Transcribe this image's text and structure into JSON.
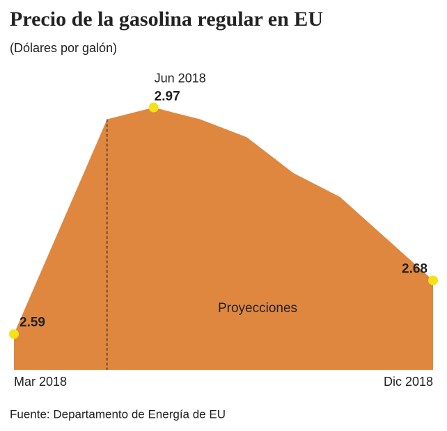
{
  "chart_data": {
    "type": "area",
    "title": "Precio de la gasolina regular en EU",
    "subtitle": "(Dólares por galón)",
    "source": "Fuente: Departamento de Energía de EU",
    "annotation": "Proyecciones",
    "projection_start_index": 2,
    "categories": [
      "Mar 2018",
      null,
      null,
      "Jun 2018",
      null,
      null,
      null,
      null,
      null,
      "Dic 2018"
    ],
    "values": [
      2.59,
      2.77,
      2.95,
      2.97,
      2.95,
      2.92,
      2.86,
      2.82,
      2.75,
      2.68
    ],
    "color": "#e0873f",
    "point_color": "#f5e11a",
    "ylim": [
      2.53,
      3.1
    ]
  }
}
